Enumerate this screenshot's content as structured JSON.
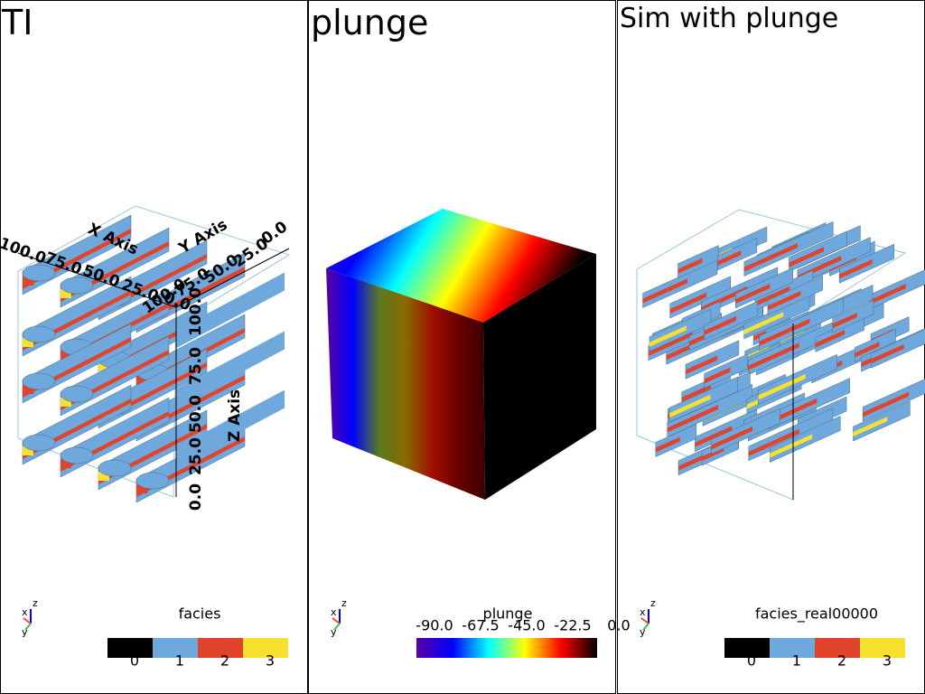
{
  "panels": [
    {
      "title": "TI",
      "axes": {
        "x_label": "X Axis",
        "y_label": "Y Axis",
        "z_label": "Z Axis",
        "x_ticks": [
          "100.0",
          "75.0",
          "50.0",
          "25.0",
          "0.0"
        ],
        "y_ticks": [
          "100.0",
          "75.0",
          "50.0",
          "25.0",
          "0.0"
        ],
        "z_ticks": [
          "0.0",
          "25.0",
          "50.0",
          "75.0",
          "100.0"
        ]
      },
      "orientation": [
        "x",
        "y",
        "z"
      ],
      "colorbar": {
        "title": "facies",
        "labels": [
          "0",
          "1",
          "2",
          "3"
        ],
        "colors": [
          "#000000",
          "#6fa8dc",
          "#e0442c",
          "#f5e12e"
        ]
      }
    },
    {
      "title": "plunge",
      "orientation": [
        "x",
        "y",
        "z"
      ],
      "colorbar": {
        "title": "plunge",
        "labels": [
          "-90.0",
          "-67.5",
          "-45.0",
          "-22.5",
          "0.0"
        ],
        "colors": [
          "#5a00a0",
          "#0000ff",
          "#00ffff",
          "#ffff00",
          "#ff0000",
          "#000000"
        ]
      }
    },
    {
      "title": "Sim with plunge",
      "orientation": [
        "x",
        "y",
        "z"
      ],
      "colorbar": {
        "title": "facies_real00000",
        "labels": [
          "0",
          "1",
          "2",
          "3"
        ],
        "colors": [
          "#000000",
          "#6fa8dc",
          "#e0442c",
          "#f5e12e"
        ]
      }
    }
  ]
}
